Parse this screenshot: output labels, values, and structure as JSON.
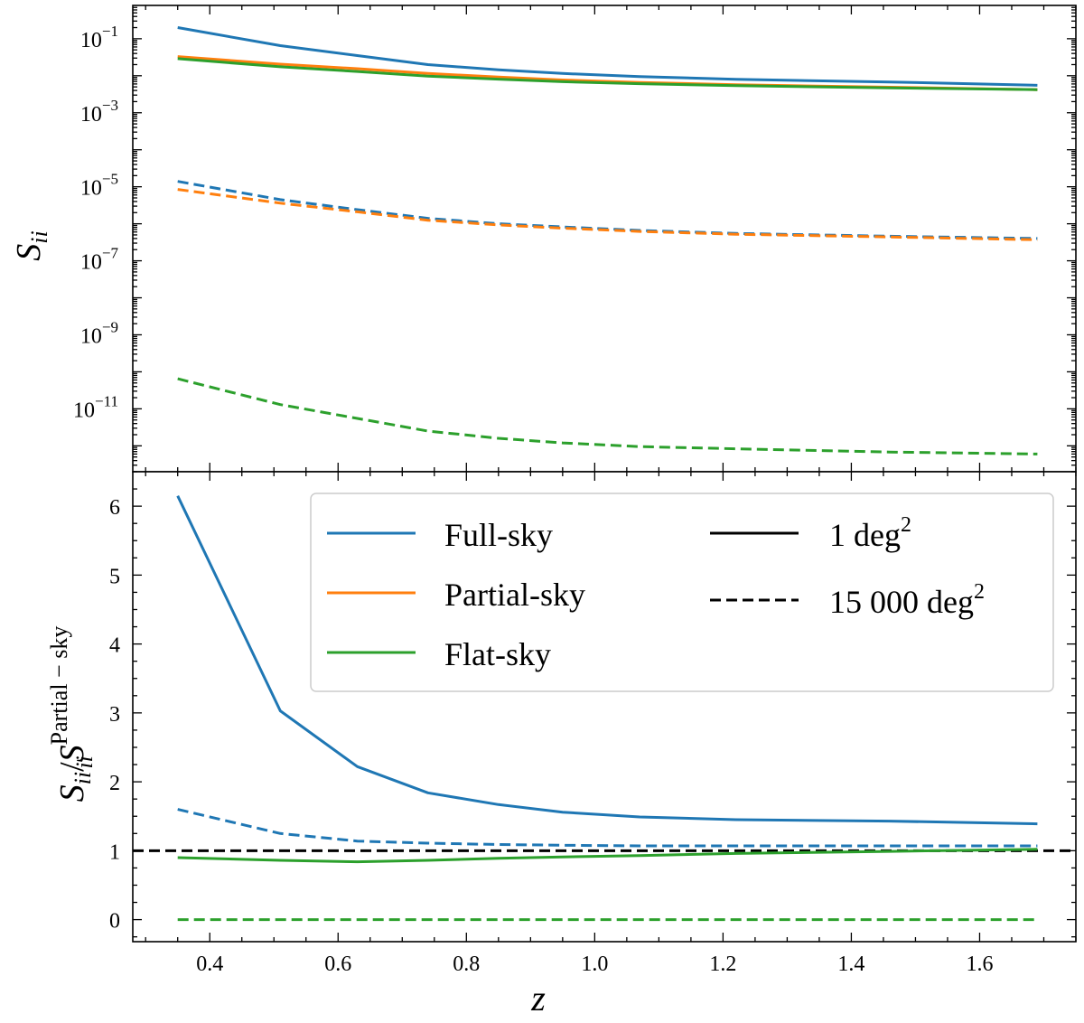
{
  "chart_data": [
    {
      "id": "top",
      "type": "line",
      "yscale": "log",
      "ylabel": "S_ii",
      "ylabel_main": "S",
      "ylabel_sub": "ii",
      "xlim": [
        0.28,
        1.75
      ],
      "ylim_exp": [
        -12.7,
        -0.1
      ],
      "xticks_major": [
        0.4,
        0.6,
        0.8,
        1.0,
        1.2,
        1.4,
        1.6
      ],
      "yticks": [
        {
          "exp": -1,
          "label_base": "10",
          "label_exp": "−1"
        },
        {
          "exp": -3,
          "label_base": "10",
          "label_exp": "−3"
        },
        {
          "exp": -5,
          "label_base": "10",
          "label_exp": "−5"
        },
        {
          "exp": -7,
          "label_base": "10",
          "label_exp": "−7"
        },
        {
          "exp": -9,
          "label_base": "10",
          "label_exp": "−9"
        },
        {
          "exp": -11,
          "label_base": "10",
          "label_exp": "−11"
        }
      ],
      "x": [
        0.35,
        0.51,
        0.63,
        0.74,
        0.85,
        0.95,
        1.07,
        1.22,
        1.46,
        1.69
      ],
      "series": [
        {
          "name": "Full-sky",
          "area": "1 deg²",
          "color": "#1f77b4",
          "dash": false,
          "values": [
            0.2,
            0.065,
            0.035,
            0.02,
            0.0145,
            0.0115,
            0.0095,
            0.008,
            0.0068,
            0.0055
          ]
        },
        {
          "name": "Partial-sky",
          "area": "1 deg²",
          "color": "#ff7f0e",
          "dash": false,
          "values": [
            0.033,
            0.0205,
            0.0155,
            0.0115,
            0.0092,
            0.0077,
            0.0066,
            0.0057,
            0.0049,
            0.0042
          ]
        },
        {
          "name": "Flat-sky",
          "area": "1 deg²",
          "color": "#2ca02c",
          "dash": false,
          "values": [
            0.029,
            0.0175,
            0.013,
            0.0098,
            0.0081,
            0.0069,
            0.0061,
            0.0054,
            0.0047,
            0.0042
          ]
        },
        {
          "name": "Full-sky",
          "area": "15 000 deg²",
          "color": "#1f77b4",
          "dash": true,
          "values": [
            1.4e-05,
            4.5e-06,
            2.4e-06,
            1.4e-06,
            1e-06,
            8.2e-07,
            6.6e-07,
            5.5e-07,
            4.6e-07,
            4e-07
          ]
        },
        {
          "name": "Partial-sky",
          "area": "15 000 deg²",
          "color": "#ff7f0e",
          "dash": true,
          "values": [
            8.5e-06,
            3.6e-06,
            2.1e-06,
            1.25e-06,
            9.3e-07,
            7.6e-07,
            6.2e-07,
            5.2e-07,
            4.4e-07,
            3.7e-07
          ]
        },
        {
          "name": "Flat-sky",
          "area": "15 000 deg²",
          "color": "#2ca02c",
          "dash": true,
          "values": [
            6.5e-11,
            1.3e-11,
            5.5e-12,
            2.5e-12,
            1.6e-12,
            1.2e-12,
            9.5e-13,
            8.3e-13,
            6.8e-13,
            6e-13
          ]
        }
      ]
    },
    {
      "id": "bottom",
      "type": "line",
      "yscale": "linear",
      "xlabel": "z",
      "ylabel": "S_ii/S_ii^Partial−sky",
      "ylabel_main": "S",
      "ylabel_sub": "ii",
      "ylabel_slash": "/",
      "ylabel_sup": "Partial − sky",
      "xlim": [
        0.28,
        1.75
      ],
      "ylim": [
        -0.32,
        6.5
      ],
      "xticks": [
        0.4,
        0.6,
        0.8,
        1.0,
        1.2,
        1.4,
        1.6
      ],
      "xtick_labels": [
        "0.4",
        "0.6",
        "0.8",
        "1.0",
        "1.2",
        "1.4",
        "1.6"
      ],
      "yticks": [
        0,
        1,
        2,
        3,
        4,
        5,
        6
      ],
      "ytick_labels": [
        "0",
        "1",
        "2",
        "3",
        "4",
        "5",
        "6"
      ],
      "reference_line": {
        "y": 1,
        "color": "#000000",
        "dash": true
      },
      "x": [
        0.35,
        0.51,
        0.63,
        0.74,
        0.85,
        0.95,
        1.07,
        1.22,
        1.46,
        1.69
      ],
      "series": [
        {
          "name": "Full-sky",
          "area": "1 deg²",
          "color": "#1f77b4",
          "dash": false,
          "values": [
            6.15,
            3.03,
            2.22,
            1.84,
            1.67,
            1.56,
            1.49,
            1.45,
            1.43,
            1.39
          ]
        },
        {
          "name": "Full-sky",
          "area": "15 000 deg²",
          "color": "#1f77b4",
          "dash": true,
          "values": [
            1.6,
            1.25,
            1.14,
            1.11,
            1.09,
            1.08,
            1.07,
            1.07,
            1.07,
            1.07
          ]
        },
        {
          "name": "Flat-sky",
          "area": "1 deg²",
          "color": "#2ca02c",
          "dash": false,
          "values": [
            0.9,
            0.86,
            0.84,
            0.86,
            0.89,
            0.91,
            0.93,
            0.96,
            0.99,
            1.02
          ]
        },
        {
          "name": "Flat-sky",
          "area": "15 000 deg²",
          "color": "#2ca02c",
          "dash": true,
          "values": [
            0.0,
            0.0,
            0.0,
            0.0,
            0.0,
            0.0,
            0.0,
            0.0,
            0.0,
            0.0
          ]
        }
      ]
    }
  ],
  "legend": {
    "placement": "upper-right of bottom panel",
    "colors": [
      {
        "label": "Full-sky",
        "color": "#1f77b4"
      },
      {
        "label": "Partial-sky",
        "color": "#ff7f0e"
      },
      {
        "label": "Flat-sky",
        "color": "#2ca02c"
      }
    ],
    "styles": [
      {
        "label_base": "1 deg",
        "label_sup": "2",
        "dash": false
      },
      {
        "label_base": "15 000 deg",
        "label_sup": "2",
        "dash": true
      }
    ]
  }
}
